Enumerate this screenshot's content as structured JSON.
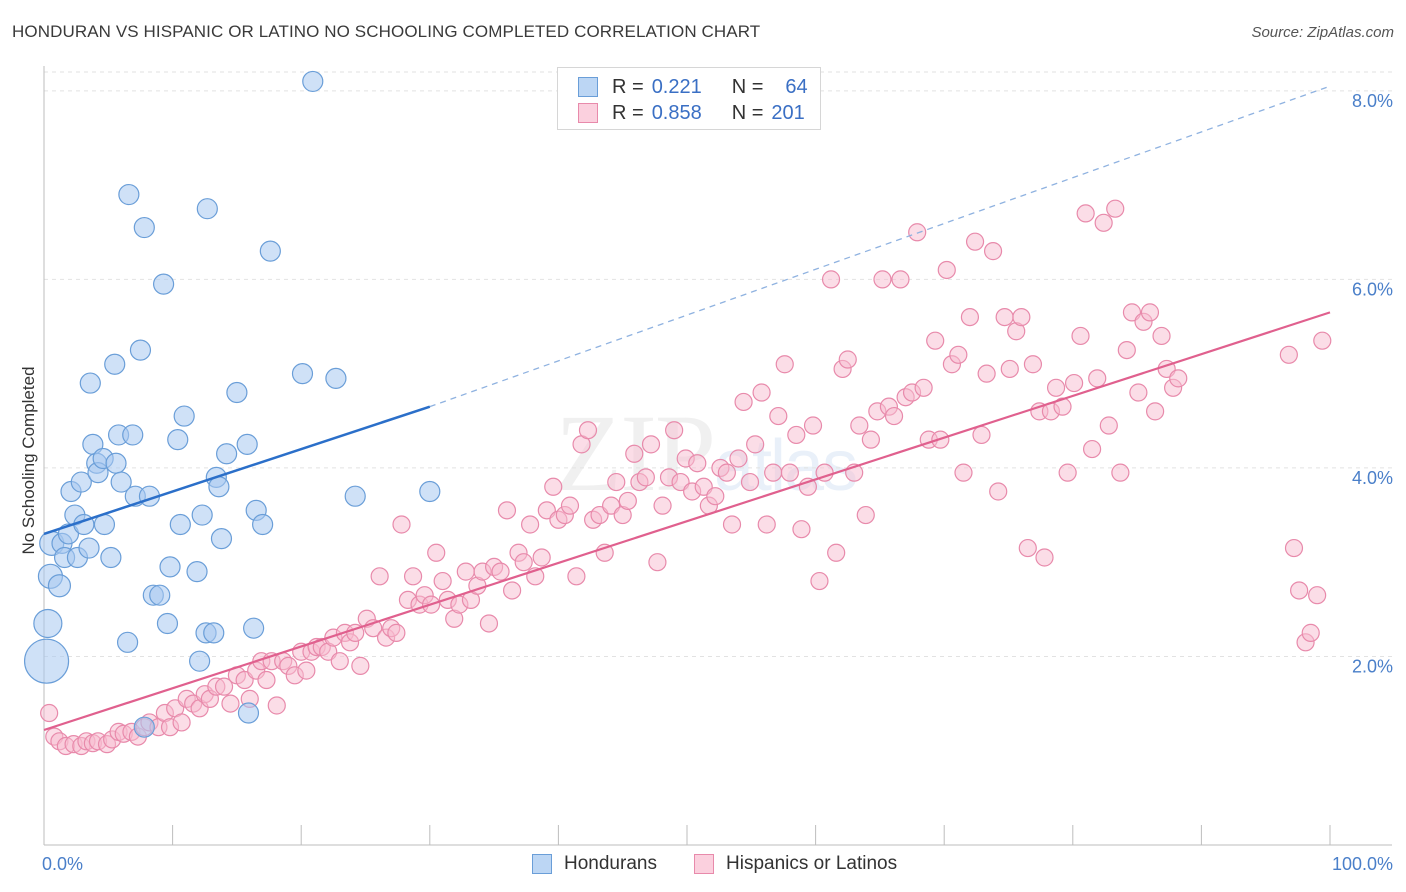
{
  "title": "HONDURAN VS HISPANIC OR LATINO NO SCHOOLING COMPLETED CORRELATION CHART",
  "source": "Source: ZipAtlas.com",
  "watermark": {
    "zip": "ZIP",
    "atlas": "atlas"
  },
  "legend_top": [
    {
      "r_label": "R =",
      "r_value": "0.221",
      "n_label": "N =",
      "n_value": "64",
      "color": "#a8c8f0",
      "border": "#6a9ed8"
    },
    {
      "r_label": "R =",
      "r_value": "0.858",
      "n_label": "N =",
      "n_value": "201",
      "color": "#f8bcd0",
      "border": "#e88aab"
    }
  ],
  "legend_bottom": [
    {
      "label": "Hondurans",
      "color": "#a8c8f0",
      "border": "#6a9ed8"
    },
    {
      "label": "Hispanics or Latinos",
      "color": "#f8bcd0",
      "border": "#e88aab"
    }
  ],
  "chart_data": {
    "type": "scatter",
    "title": "HONDURAN VS HISPANIC OR LATINO NO SCHOOLING COMPLETED CORRELATION CHART",
    "xlabel": "",
    "ylabel": "No Schooling Completed",
    "xlim": [
      0,
      100
    ],
    "ylim": [
      0,
      8.2
    ],
    "x_tick_labels": [
      "0.0%",
      "100.0%"
    ],
    "y_ticks": [
      2,
      4,
      6,
      8
    ],
    "y_tick_labels": [
      "2.0%",
      "4.0%",
      "6.0%",
      "8.0%"
    ],
    "grid": true,
    "legend_placement": "top-center",
    "series": [
      {
        "name": "Hondurans",
        "color": "#a8c8f0",
        "stroke": "#6a9ed8",
        "trend": {
          "x": [
            0,
            30
          ],
          "y": [
            3.3,
            4.65
          ],
          "dashed_extension_to": [
            100,
            8.05
          ],
          "color": "#2b6fc9"
        },
        "points": [
          [
            0.2,
            1.95,
            22
          ],
          [
            0.3,
            2.35,
            14
          ],
          [
            0.5,
            2.85,
            12
          ],
          [
            0.6,
            3.2,
            12
          ],
          [
            1.2,
            2.75,
            11
          ],
          [
            1.4,
            3.2,
            10
          ],
          [
            1.6,
            3.05,
            10
          ],
          [
            1.9,
            3.3,
            10
          ],
          [
            2.1,
            3.75,
            10
          ],
          [
            2.4,
            3.5,
            10
          ],
          [
            2.6,
            3.05,
            10
          ],
          [
            2.9,
            3.85,
            10
          ],
          [
            3.1,
            3.4,
            10
          ],
          [
            3.5,
            3.15,
            10
          ],
          [
            3.6,
            4.9,
            10
          ],
          [
            3.8,
            4.25,
            10
          ],
          [
            4.1,
            4.05,
            10
          ],
          [
            4.2,
            3.95,
            10
          ],
          [
            4.6,
            4.1,
            10
          ],
          [
            4.7,
            3.4,
            10
          ],
          [
            5.2,
            3.05,
            10
          ],
          [
            5.6,
            4.05,
            10
          ],
          [
            5.5,
            5.1,
            10
          ],
          [
            5.8,
            4.35,
            10
          ],
          [
            6.0,
            3.85,
            10
          ],
          [
            6.5,
            2.15,
            10
          ],
          [
            6.6,
            6.9,
            10
          ],
          [
            6.9,
            4.35,
            10
          ],
          [
            7.1,
            3.7,
            10
          ],
          [
            7.5,
            5.25,
            10
          ],
          [
            7.8,
            1.25,
            10
          ],
          [
            7.8,
            6.55,
            10
          ],
          [
            8.2,
            3.7,
            10
          ],
          [
            8.5,
            2.65,
            10
          ],
          [
            9.0,
            2.65,
            10
          ],
          [
            9.3,
            5.95,
            10
          ],
          [
            9.6,
            2.35,
            10
          ],
          [
            9.8,
            2.95,
            10
          ],
          [
            10.4,
            4.3,
            10
          ],
          [
            10.6,
            3.4,
            10
          ],
          [
            10.9,
            4.55,
            10
          ],
          [
            11.9,
            2.9,
            10
          ],
          [
            12.1,
            1.95,
            10
          ],
          [
            12.3,
            3.5,
            10
          ],
          [
            12.6,
            2.25,
            10
          ],
          [
            12.7,
            6.75,
            10
          ],
          [
            13.2,
            2.25,
            10
          ],
          [
            13.4,
            3.9,
            10
          ],
          [
            13.6,
            3.8,
            10
          ],
          [
            13.8,
            3.25,
            10
          ],
          [
            14.2,
            4.15,
            10
          ],
          [
            15.0,
            4.8,
            10
          ],
          [
            15.8,
            4.25,
            10
          ],
          [
            15.9,
            1.4,
            10
          ],
          [
            16.3,
            2.3,
            10
          ],
          [
            16.5,
            3.55,
            10
          ],
          [
            17.0,
            3.4,
            10
          ],
          [
            17.6,
            6.3,
            10
          ],
          [
            20.1,
            5.0,
            10
          ],
          [
            20.9,
            8.1,
            10
          ],
          [
            22.7,
            4.95,
            10
          ],
          [
            24.2,
            3.7,
            10
          ],
          [
            30.0,
            3.75,
            10
          ]
        ]
      },
      {
        "name": "Hispanics or Latinos",
        "color": "#f8bcd0",
        "stroke": "#e88aab",
        "trend": {
          "x": [
            0,
            100
          ],
          "y": [
            1.22,
            5.65
          ],
          "color": "#e0608e"
        },
        "points": [
          [
            0.4,
            1.4
          ],
          [
            0.8,
            1.15
          ],
          [
            1.2,
            1.1
          ],
          [
            1.7,
            1.05
          ],
          [
            2.3,
            1.07
          ],
          [
            2.9,
            1.05
          ],
          [
            3.3,
            1.1
          ],
          [
            3.8,
            1.08
          ],
          [
            4.2,
            1.1
          ],
          [
            4.9,
            1.07
          ],
          [
            5.3,
            1.12
          ],
          [
            5.8,
            1.2
          ],
          [
            6.2,
            1.18
          ],
          [
            6.8,
            1.2
          ],
          [
            7.3,
            1.15
          ],
          [
            7.8,
            1.25
          ],
          [
            8.2,
            1.3
          ],
          [
            8.9,
            1.25
          ],
          [
            9.4,
            1.4
          ],
          [
            9.8,
            1.25
          ],
          [
            10.2,
            1.45
          ],
          [
            10.7,
            1.3
          ],
          [
            11.1,
            1.55
          ],
          [
            11.6,
            1.5
          ],
          [
            12.1,
            1.45
          ],
          [
            12.5,
            1.6
          ],
          [
            12.9,
            1.55
          ],
          [
            13.4,
            1.68
          ],
          [
            14.0,
            1.68
          ],
          [
            14.5,
            1.5
          ],
          [
            15.0,
            1.8
          ],
          [
            15.6,
            1.75
          ],
          [
            16.0,
            1.55
          ],
          [
            16.5,
            1.85
          ],
          [
            16.9,
            1.95
          ],
          [
            17.3,
            1.75
          ],
          [
            17.7,
            1.95
          ],
          [
            18.1,
            1.48
          ],
          [
            18.6,
            1.95
          ],
          [
            19.0,
            1.9
          ],
          [
            19.5,
            1.8
          ],
          [
            20.0,
            2.05
          ],
          [
            20.4,
            1.85
          ],
          [
            20.8,
            2.05
          ],
          [
            21.2,
            2.1
          ],
          [
            21.6,
            2.1
          ],
          [
            22.1,
            2.05
          ],
          [
            22.5,
            2.2
          ],
          [
            23.0,
            1.95
          ],
          [
            23.4,
            2.25
          ],
          [
            23.8,
            2.15
          ],
          [
            24.2,
            2.25
          ],
          [
            24.6,
            1.9
          ],
          [
            25.1,
            2.4
          ],
          [
            25.6,
            2.3
          ],
          [
            26.1,
            2.85
          ],
          [
            26.6,
            2.2
          ],
          [
            27.0,
            2.3
          ],
          [
            27.4,
            2.25
          ],
          [
            27.8,
            3.4
          ],
          [
            28.3,
            2.6
          ],
          [
            28.7,
            2.85
          ],
          [
            29.2,
            2.55
          ],
          [
            29.6,
            2.65
          ],
          [
            30.1,
            2.55
          ],
          [
            30.5,
            3.1
          ],
          [
            31.0,
            2.8
          ],
          [
            31.4,
            2.6
          ],
          [
            31.9,
            2.4
          ],
          [
            32.3,
            2.55
          ],
          [
            32.8,
            2.9
          ],
          [
            33.2,
            2.6
          ],
          [
            33.7,
            2.75
          ],
          [
            34.1,
            2.9
          ],
          [
            34.6,
            2.35
          ],
          [
            35.0,
            2.95
          ],
          [
            35.5,
            2.9
          ],
          [
            36.0,
            3.55
          ],
          [
            36.4,
            2.7
          ],
          [
            36.9,
            3.1
          ],
          [
            37.3,
            3.0
          ],
          [
            37.8,
            3.4
          ],
          [
            38.2,
            2.85
          ],
          [
            38.7,
            3.05
          ],
          [
            39.1,
            3.55
          ],
          [
            39.6,
            3.8
          ],
          [
            40.0,
            3.45
          ],
          [
            40.5,
            3.5
          ],
          [
            40.9,
            3.6
          ],
          [
            41.4,
            2.85
          ],
          [
            41.8,
            4.25
          ],
          [
            42.3,
            4.4
          ],
          [
            42.7,
            3.45
          ],
          [
            43.2,
            3.5
          ],
          [
            43.6,
            3.1
          ],
          [
            44.1,
            3.6
          ],
          [
            44.5,
            3.85
          ],
          [
            45.0,
            3.5
          ],
          [
            45.4,
            3.65
          ],
          [
            45.9,
            4.15
          ],
          [
            46.3,
            3.85
          ],
          [
            46.8,
            3.9
          ],
          [
            47.2,
            4.25
          ],
          [
            47.7,
            3.0
          ],
          [
            48.1,
            3.6
          ],
          [
            48.6,
            3.9
          ],
          [
            49.0,
            4.4
          ],
          [
            49.5,
            3.85
          ],
          [
            49.9,
            4.1
          ],
          [
            50.4,
            3.75
          ],
          [
            50.8,
            4.05
          ],
          [
            51.3,
            3.8
          ],
          [
            51.7,
            3.6
          ],
          [
            52.2,
            3.7
          ],
          [
            52.6,
            4.0
          ],
          [
            53.1,
            3.95
          ],
          [
            53.5,
            3.4
          ],
          [
            54.0,
            4.1
          ],
          [
            54.4,
            4.7
          ],
          [
            54.9,
            3.85
          ],
          [
            55.3,
            4.25
          ],
          [
            55.8,
            4.8
          ],
          [
            56.2,
            3.4
          ],
          [
            56.7,
            3.95
          ],
          [
            57.1,
            4.55
          ],
          [
            57.6,
            5.1
          ],
          [
            58.0,
            3.95
          ],
          [
            58.5,
            4.35
          ],
          [
            58.9,
            3.35
          ],
          [
            59.4,
            3.8
          ],
          [
            59.8,
            4.45
          ],
          [
            60.3,
            2.8
          ],
          [
            60.7,
            3.95
          ],
          [
            61.2,
            6.0
          ],
          [
            61.6,
            3.1
          ],
          [
            62.1,
            5.05
          ],
          [
            62.5,
            5.15
          ],
          [
            63.0,
            3.95
          ],
          [
            63.4,
            4.45
          ],
          [
            63.9,
            3.5
          ],
          [
            64.3,
            4.3
          ],
          [
            64.8,
            4.6
          ],
          [
            65.2,
            6.0
          ],
          [
            65.7,
            4.65
          ],
          [
            66.1,
            4.55
          ],
          [
            66.6,
            6.0
          ],
          [
            67.0,
            4.75
          ],
          [
            67.5,
            4.8
          ],
          [
            67.9,
            6.5
          ],
          [
            68.4,
            4.85
          ],
          [
            68.8,
            4.3
          ],
          [
            69.3,
            5.35
          ],
          [
            69.7,
            4.3
          ],
          [
            70.2,
            6.1
          ],
          [
            70.6,
            5.1
          ],
          [
            71.1,
            5.2
          ],
          [
            71.5,
            3.95
          ],
          [
            72.0,
            5.6
          ],
          [
            72.4,
            6.4
          ],
          [
            72.9,
            4.35
          ],
          [
            73.3,
            5.0
          ],
          [
            73.8,
            6.3
          ],
          [
            74.2,
            3.75
          ],
          [
            74.7,
            5.6
          ],
          [
            75.1,
            5.05
          ],
          [
            75.6,
            5.45
          ],
          [
            76.0,
            5.6
          ],
          [
            76.5,
            3.15
          ],
          [
            76.9,
            5.1
          ],
          [
            77.4,
            4.6
          ],
          [
            77.8,
            3.05
          ],
          [
            78.3,
            4.6
          ],
          [
            78.7,
            4.85
          ],
          [
            79.2,
            4.65
          ],
          [
            79.6,
            3.95
          ],
          [
            80.1,
            4.9
          ],
          [
            80.6,
            5.4
          ],
          [
            81.0,
            6.7
          ],
          [
            81.5,
            4.2
          ],
          [
            81.9,
            4.95
          ],
          [
            82.4,
            6.6
          ],
          [
            82.8,
            4.45
          ],
          [
            83.3,
            6.75
          ],
          [
            83.7,
            3.95
          ],
          [
            84.2,
            5.25
          ],
          [
            84.6,
            5.65
          ],
          [
            85.1,
            4.8
          ],
          [
            85.5,
            5.55
          ],
          [
            86.0,
            5.65
          ],
          [
            86.4,
            4.6
          ],
          [
            86.9,
            5.4
          ],
          [
            87.3,
            5.05
          ],
          [
            87.8,
            4.85
          ],
          [
            88.2,
            4.95
          ],
          [
            96.8,
            5.2
          ],
          [
            97.2,
            3.15
          ],
          [
            97.6,
            2.7
          ],
          [
            98.1,
            2.15
          ],
          [
            98.5,
            2.25
          ],
          [
            99.0,
            2.65
          ],
          [
            99.4,
            5.35
          ]
        ]
      }
    ]
  }
}
